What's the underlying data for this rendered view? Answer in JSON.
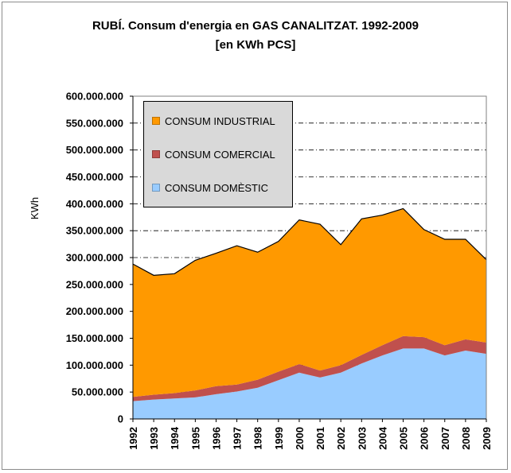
{
  "title": "RUBÍ. Consum d'energia en GAS CANALITZAT. 1992-2009",
  "subtitle": "[en KWh PCS]",
  "chart_data": {
    "type": "area",
    "stacked": true,
    "title": "RUBÍ. Consum d'energia en GAS CANALITZAT. 1992-2009",
    "subtitle": "[en KWh PCS]",
    "xlabel": "",
    "ylabel": "KWh",
    "ylim": [
      0,
      600000000
    ],
    "y_ticks": [
      "0",
      "50.000.000",
      "100.000.000",
      "150.000.000",
      "200.000.000",
      "250.000.000",
      "300.000.000",
      "350.000.000",
      "400.000.000",
      "450.000.000",
      "500.000.000",
      "550.000.000",
      "600.000.000"
    ],
    "grid": true,
    "legend": "top-left",
    "categories": [
      "1992",
      "1993",
      "1994",
      "1995",
      "1996",
      "1997",
      "1998",
      "1999",
      "2000",
      "2001",
      "2002",
      "2003",
      "2004",
      "2005",
      "2006",
      "2007",
      "2008",
      "2009"
    ],
    "series": [
      {
        "name": "CONSUM DOMÈSTIC",
        "color": "#99ccff",
        "values": [
          33000000,
          36000000,
          38000000,
          40000000,
          46000000,
          51000000,
          58000000,
          72000000,
          86000000,
          77000000,
          86000000,
          103000000,
          118000000,
          131000000,
          131000000,
          118000000,
          127000000,
          121000000
        ]
      },
      {
        "name": "CONSUM COMERCIAL",
        "color": "#c0504d",
        "values": [
          8000000,
          9000000,
          10000000,
          13000000,
          15000000,
          13000000,
          15000000,
          16000000,
          16000000,
          13000000,
          14000000,
          16000000,
          19000000,
          23000000,
          21000000,
          19000000,
          21000000,
          21000000
        ]
      },
      {
        "name": "CONSUM INDUSTRIAL",
        "color": "#ff9900",
        "values": [
          247000000,
          222000000,
          222000000,
          242000000,
          247000000,
          258000000,
          237000000,
          242000000,
          268000000,
          272000000,
          224000000,
          253000000,
          242000000,
          237000000,
          200000000,
          197000000,
          186000000,
          154000000
        ]
      }
    ]
  }
}
